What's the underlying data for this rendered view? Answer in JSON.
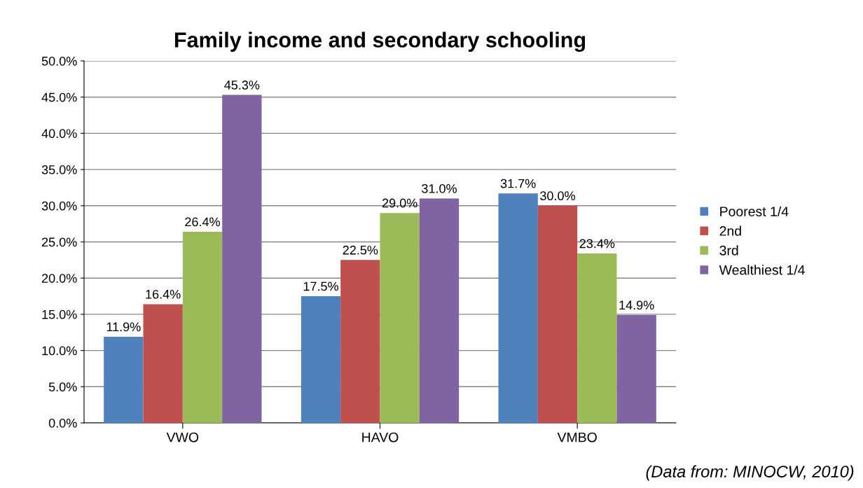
{
  "chart_data": {
    "type": "bar",
    "title": "Family income and secondary schooling",
    "categories": [
      "VWO",
      "HAVO",
      "VMBO"
    ],
    "series": [
      {
        "name": "Poorest 1/4",
        "color": "#4f81bd",
        "values": [
          11.9,
          17.5,
          31.7
        ],
        "value_labels": [
          "11.9%",
          "17.5%",
          "31.7%"
        ]
      },
      {
        "name": "2nd",
        "color": "#c0504d",
        "values": [
          16.4,
          22.5,
          30.0
        ],
        "value_labels": [
          "16.4%",
          "22.5%",
          "30.0%"
        ]
      },
      {
        "name": "3rd",
        "color": "#9bbb59",
        "values": [
          26.4,
          29.0,
          23.4
        ],
        "value_labels": [
          "26.4%",
          "29.0%",
          "23.4%"
        ]
      },
      {
        "name": "Wealthiest 1/4",
        "color": "#8064a2",
        "values": [
          45.3,
          31.0,
          14.9
        ],
        "value_labels": [
          "45.3%",
          "31.0%",
          "14.9%"
        ]
      }
    ],
    "ylim": [
      0,
      50
    ],
    "yticks": [
      {
        "value": 0,
        "label": "0.0%"
      },
      {
        "value": 5,
        "label": "5.0%"
      },
      {
        "value": 10,
        "label": "10.0%"
      },
      {
        "value": 15,
        "label": "15.0%"
      },
      {
        "value": 20,
        "label": "20.0%"
      },
      {
        "value": 25,
        "label": "25.0%"
      },
      {
        "value": 30,
        "label": "30.0%"
      },
      {
        "value": 35,
        "label": "35.0%"
      },
      {
        "value": 40,
        "label": "40.0%"
      },
      {
        "value": 45,
        "label": "45.0%"
      },
      {
        "value": 50,
        "label": "50.0%"
      }
    ],
    "grid": "y",
    "legend": "right",
    "annotations": [
      "(Data from: MINOCW, 2010)"
    ]
  }
}
